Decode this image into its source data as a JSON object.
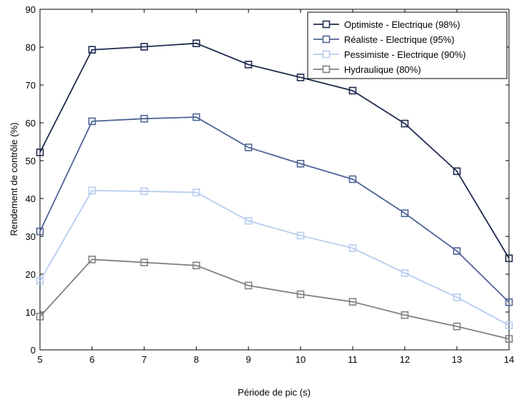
{
  "chart_data": {
    "type": "line",
    "title": "",
    "xlabel": "Période de pic (s)",
    "ylabel": "Rendement de contrôle (%)",
    "xlim": [
      5,
      14
    ],
    "ylim": [
      0,
      90
    ],
    "x": [
      5,
      6,
      7,
      8,
      9,
      10,
      11,
      12,
      13,
      14
    ],
    "xticks": [
      "5",
      "6",
      "7",
      "8",
      "9",
      "10",
      "11",
      "12",
      "13",
      "14"
    ],
    "yticks": [
      "0",
      "10",
      "20",
      "30",
      "40",
      "50",
      "60",
      "70",
      "80",
      "90"
    ],
    "grid": false,
    "legend_position": "top-right",
    "marker": "square",
    "series": [
      {
        "name": "Optimiste - Electrique (98%)",
        "color": "#1f2a4f",
        "values": [
          52.2,
          79.3,
          80.1,
          81.0,
          75.4,
          72.0,
          68.5,
          59.8,
          47.2,
          24.2
        ]
      },
      {
        "name": "Réaliste - Electrique (95%)",
        "color": "#4f6497",
        "values": [
          31.3,
          60.4,
          61.1,
          61.5,
          53.5,
          49.2,
          45.1,
          36.1,
          26.1,
          12.6
        ]
      },
      {
        "name": "Pessimiste - Electrique (90%)",
        "color": "#b7ccee",
        "values": [
          18.2,
          42.1,
          41.9,
          41.6,
          34.1,
          30.2,
          26.9,
          20.3,
          13.9,
          6.5
        ]
      },
      {
        "name": "Hydraulique (80%)",
        "color": "#808080",
        "values": [
          8.8,
          23.9,
          23.1,
          22.3,
          17.0,
          14.7,
          12.7,
          9.2,
          6.2,
          2.9
        ]
      }
    ]
  }
}
